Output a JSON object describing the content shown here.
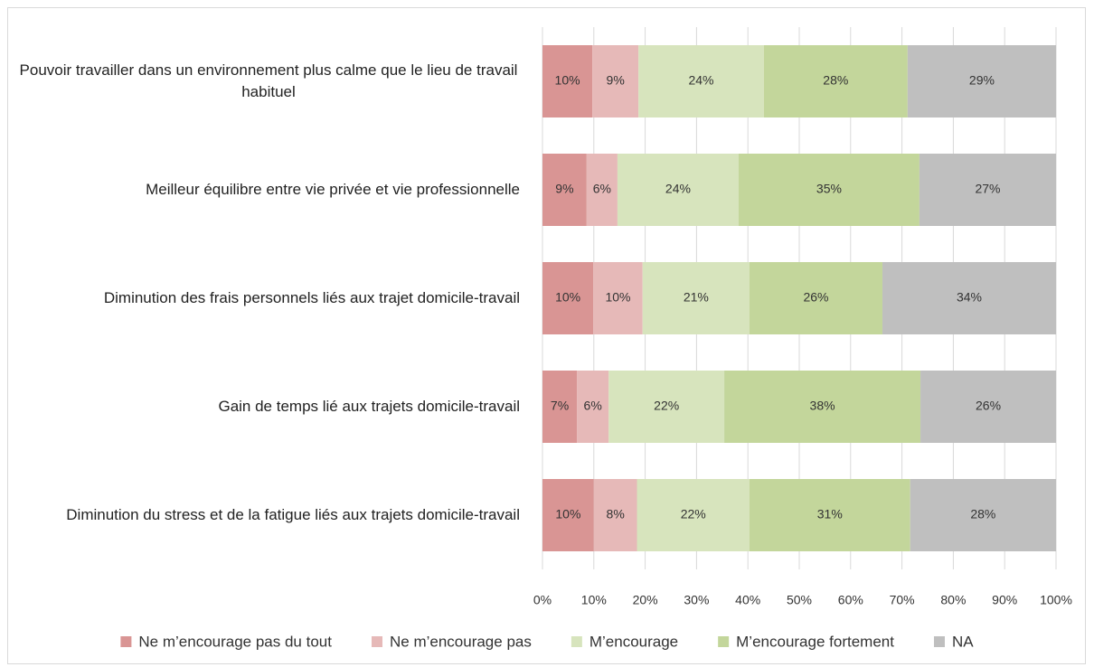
{
  "chart_data": {
    "type": "bar",
    "orientation": "horizontal",
    "stacked": true,
    "categories": [
      "Pouvoir travailler dans un environnement plus calme que le lieu de travail habituel",
      "Meilleur équilibre entre vie privée et vie professionnelle",
      "Diminution des frais personnels liés aux trajet domicile-travail",
      "Gain de temps lié aux trajets domicile-travail",
      "Diminution du stress et de la fatigue liés aux trajets domicile-travail"
    ],
    "series": [
      {
        "name": "Ne m’encourage pas du tout",
        "color": "#d99594",
        "values": [
          9.7,
          8.6,
          9.9,
          6.7,
          10.0
        ],
        "value_labels": [
          "10%",
          "9%",
          "10%",
          "7%",
          "10%"
        ]
      },
      {
        "name": "Ne m’encourage pas",
        "color": "#e6b9b8",
        "values": [
          9.0,
          6.0,
          9.6,
          6.2,
          8.4
        ],
        "value_labels": [
          "9%",
          "6%",
          "10%",
          "6%",
          "8%"
        ]
      },
      {
        "name": "M’encourage",
        "color": "#d7e4bd",
        "values": [
          24.4,
          23.6,
          20.8,
          22.5,
          21.9
        ],
        "value_labels": [
          "24%",
          "24%",
          "21%",
          "22%",
          "22%"
        ]
      },
      {
        "name": "M’encourage fortement",
        "color": "#c3d69b",
        "values": [
          28.0,
          35.2,
          25.9,
          38.2,
          31.3
        ],
        "value_labels": [
          "28%",
          "35%",
          "26%",
          "38%",
          "31%"
        ]
      },
      {
        "name": "NA",
        "color": "#bfbfbf",
        "values": [
          28.9,
          26.6,
          33.8,
          26.4,
          28.4
        ],
        "value_labels": [
          "29%",
          "27%",
          "34%",
          "26%",
          "28%"
        ]
      }
    ],
    "xlim": [
      0,
      100
    ],
    "xticks": [
      {
        "value": 0,
        "label": "0%"
      },
      {
        "value": 10,
        "label": "10%"
      },
      {
        "value": 20,
        "label": "20%"
      },
      {
        "value": 30,
        "label": "30%"
      },
      {
        "value": 40,
        "label": "40%"
      },
      {
        "value": 50,
        "label": "50%"
      },
      {
        "value": 60,
        "label": "60%"
      },
      {
        "value": 70,
        "label": "70%"
      },
      {
        "value": 80,
        "label": "80%"
      },
      {
        "value": 90,
        "label": "90%"
      },
      {
        "value": 100,
        "label": "100%"
      }
    ],
    "grid": true,
    "legend": "bottom"
  }
}
